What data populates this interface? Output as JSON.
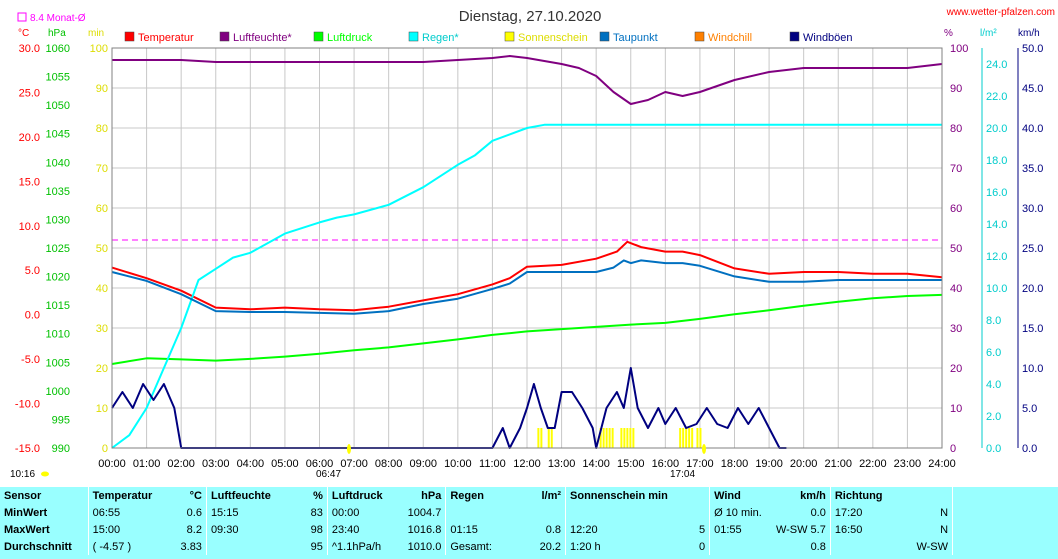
{
  "title": "Dienstag, 27.10.2020",
  "site": "www.wetter-pfalzen.com",
  "monthly_avg_label": "8.4 Monat-Ø",
  "unit_labels": {
    "celsius": "°C",
    "hpa": "hPa",
    "min": "min",
    "percent": "%",
    "lm2": "l/m²",
    "kmh": "km/h"
  },
  "legend": [
    {
      "name": "Temperatur",
      "color": "#ff0000"
    },
    {
      "name": "Luftfeuchte*",
      "color": "#800080"
    },
    {
      "name": "Luftdruck",
      "color": "#00ff00"
    },
    {
      "name": "Regen*",
      "color": "#00ffff"
    },
    {
      "name": "Sonnenschein",
      "color": "#ffff00"
    },
    {
      "name": "Taupunkt",
      "color": "#0070c0"
    },
    {
      "name": "Windchill",
      "color": "#ff8000"
    },
    {
      "name": "Windböen",
      "color": "#000080"
    }
  ],
  "markers": {
    "sunrise": "06:47",
    "sunset": "17:04",
    "daylength": "10:16"
  },
  "chart_data": {
    "type": "line",
    "title": "Dienstag, 27.10.2020",
    "x_ticks": [
      "00:00",
      "01:00",
      "02:00",
      "03:00",
      "04:00",
      "05:00",
      "06:00",
      "07:00",
      "08:00",
      "09:00",
      "10:00",
      "11:00",
      "12:00",
      "13:00",
      "14:00",
      "15:00",
      "16:00",
      "17:00",
      "18:00",
      "19:00",
      "20:00",
      "21:00",
      "22:00",
      "23:00",
      "24:00"
    ],
    "xlim": [
      0,
      24
    ],
    "axes": {
      "temperature_C": {
        "ticks": [
          "30.0",
          "25.0",
          "20.0",
          "15.0",
          "10.0",
          "5.0",
          "0.0",
          "-5.0",
          "-10.0",
          "-15.0"
        ],
        "range": [
          -15,
          30
        ],
        "color": "#ff0000"
      },
      "pressure_hPa": {
        "ticks": [
          "1060",
          "1055",
          "1050",
          "1045",
          "1040",
          "1035",
          "1030",
          "1025",
          "1020",
          "1015",
          "1010",
          "1005",
          "1000",
          "995",
          "990"
        ],
        "range": [
          990,
          1060
        ],
        "color": "#00c000"
      },
      "sunshine_min": {
        "ticks": [
          "100",
          "90",
          "80",
          "70",
          "60",
          "50",
          "40",
          "30",
          "20",
          "10",
          "0"
        ],
        "range": [
          0,
          100
        ],
        "color": "#dddd00"
      },
      "humidity_pct": {
        "ticks": [
          "100",
          "90",
          "80",
          "70",
          "60",
          "50",
          "40",
          "30",
          "20",
          "10",
          "0"
        ],
        "range": [
          0,
          100
        ],
        "color": "#800080"
      },
      "rain_lm2": {
        "ticks": [
          "24.0",
          "22.0",
          "20.0",
          "18.0",
          "16.0",
          "14.0",
          "12.0",
          "10.0",
          "8.0",
          "6.0",
          "4.0",
          "2.0",
          "0.0"
        ],
        "range": [
          0,
          25
        ],
        "color": "#00cccc"
      },
      "wind_kmh": {
        "ticks": [
          "50.0",
          "45.0",
          "40.0",
          "35.0",
          "30.0",
          "25.0",
          "20.0",
          "15.0",
          "10.0",
          "5.0",
          "0.0"
        ],
        "range": [
          0,
          50
        ],
        "color": "#000080"
      }
    },
    "monthly_avg_C": 8.4,
    "series": [
      {
        "name": "Temperatur",
        "axis": "temperature_C",
        "color": "#ff0000",
        "x": [
          0,
          1,
          2,
          3,
          4,
          5,
          6,
          7,
          8,
          9,
          10,
          11,
          11.5,
          12,
          13,
          14,
          14.6,
          14.9,
          15.3,
          16,
          16.5,
          17,
          18,
          19,
          20,
          21,
          22,
          23,
          24
        ],
        "y": [
          5.3,
          4.1,
          2.7,
          0.8,
          0.6,
          0.8,
          0.6,
          0.5,
          0.9,
          1.6,
          2.3,
          3.4,
          4.1,
          5.4,
          5.6,
          6.3,
          7.1,
          8.2,
          7.6,
          7.1,
          7.1,
          6.7,
          5.2,
          4.6,
          4.8,
          4.8,
          4.6,
          4.6,
          4.2
        ]
      },
      {
        "name": "Luftfeuchte*",
        "axis": "humidity_pct",
        "color": "#800080",
        "x": [
          0,
          1,
          2,
          3,
          4,
          5,
          6,
          7,
          8,
          9,
          10,
          11,
          11.5,
          12,
          13,
          13.5,
          14,
          14.5,
          15,
          15.5,
          16,
          16.5,
          17,
          18,
          19,
          20,
          21,
          22,
          23,
          24
        ],
        "y": [
          97,
          97,
          97,
          96.5,
          96.5,
          96.5,
          96.5,
          96.5,
          96.5,
          96.5,
          97,
          97.5,
          98,
          97.5,
          96,
          95,
          93,
          89,
          86,
          87,
          89,
          88,
          89,
          92,
          94,
          95,
          95,
          95,
          95,
          96
        ]
      },
      {
        "name": "Luftdruck",
        "axis": "pressure_hPa",
        "color": "#00ff00",
        "x": [
          0,
          1,
          2,
          3,
          4,
          5,
          6,
          7,
          8,
          9,
          10,
          11,
          12,
          13,
          14,
          15,
          16,
          17,
          18,
          19,
          20,
          21,
          22,
          23,
          24
        ],
        "y": [
          1004.7,
          1005.7,
          1005.5,
          1005.3,
          1005.6,
          1006.0,
          1006.5,
          1007.1,
          1007.6,
          1008.3,
          1009.0,
          1009.8,
          1010.4,
          1010.8,
          1011.2,
          1011.6,
          1011.9,
          1012.6,
          1013.4,
          1014.1,
          1014.9,
          1015.6,
          1016.2,
          1016.6,
          1016.8
        ]
      },
      {
        "name": "Regen*",
        "axis": "rain_lm2",
        "color": "#00ffff",
        "x": [
          0,
          0.5,
          1,
          1.5,
          2,
          2.5,
          3,
          3.5,
          4,
          5,
          6,
          6.5,
          7,
          8,
          9,
          10,
          10.5,
          11,
          12,
          12.5,
          13,
          14,
          15,
          16,
          17,
          18,
          19,
          20,
          21,
          22,
          23,
          24
        ],
        "y": [
          0,
          0.8,
          2.5,
          5.0,
          7.5,
          10.5,
          11.2,
          11.9,
          12.2,
          13.4,
          14.1,
          14.4,
          14.6,
          15.2,
          16.3,
          17.7,
          18.3,
          19.2,
          20.0,
          20.2,
          20.2,
          20.2,
          20.2,
          20.2,
          20.2,
          20.2,
          20.2,
          20.2,
          20.2,
          20.2,
          20.2,
          20.2
        ]
      },
      {
        "name": "Taupunkt",
        "axis": "temperature_C",
        "color": "#0070c0",
        "x": [
          0,
          1,
          2,
          3,
          4,
          5,
          6,
          7,
          8,
          9,
          10,
          11,
          11.5,
          12,
          13,
          14,
          14.5,
          14.8,
          15,
          15.3,
          16,
          16.5,
          17,
          18,
          19,
          20,
          21,
          22,
          23,
          24
        ],
        "y": [
          4.8,
          3.8,
          2.3,
          0.4,
          0.3,
          0.3,
          0.2,
          0.1,
          0.4,
          1.2,
          1.8,
          2.9,
          3.5,
          4.8,
          4.8,
          4.8,
          5.3,
          6.1,
          5.8,
          6.1,
          5.8,
          5.8,
          5.5,
          4.3,
          3.7,
          3.7,
          3.9,
          3.9,
          3.9,
          3.9
        ]
      },
      {
        "name": "Windböen",
        "axis": "wind_kmh",
        "color": "#000080",
        "x": [
          0,
          0.3,
          0.6,
          0.9,
          1.2,
          1.5,
          1.8,
          2.0,
          2.1,
          2.1,
          10.7,
          11.0,
          11.3,
          11.5,
          11.8,
          12.0,
          12.2,
          12.4,
          12.6,
          12.8,
          13.0,
          13.3,
          13.6,
          13.9,
          14.0,
          14.3,
          14.6,
          14.8,
          15.0,
          15.2,
          15.5,
          15.8,
          16.0,
          16.3,
          16.6,
          16.9,
          17.2,
          17.5,
          17.8,
          18.1,
          18.4,
          18.7,
          19.0,
          19.3,
          19.5
        ],
        "y": [
          5,
          7,
          5,
          8,
          6,
          8,
          5,
          0,
          0,
          0,
          0,
          0,
          2.5,
          0,
          2.5,
          5,
          8,
          5,
          2.5,
          2.5,
          7,
          7,
          5,
          2.5,
          0,
          5,
          7,
          5,
          10,
          5,
          2.5,
          5,
          3,
          5,
          2.5,
          3,
          5,
          3,
          2.5,
          5,
          3,
          5,
          2.5,
          0,
          0
        ]
      }
    ],
    "sunshine_bars": [
      {
        "from": 12.3,
        "to": 12.45
      },
      {
        "from": 12.6,
        "to": 12.7
      },
      {
        "from": 14.1,
        "to": 14.45
      },
      {
        "from": 14.7,
        "to": 15.05
      },
      {
        "from": 16.4,
        "to": 16.8
      },
      {
        "from": 16.9,
        "to": 17.0
      }
    ]
  },
  "table": {
    "headers": {
      "sensor": "Sensor",
      "temp": "Temperatur",
      "temp_unit": "°C",
      "hum": "Luftfeuchte",
      "hum_unit": "%",
      "press": "Luftdruck",
      "press_unit": "hPa",
      "rain": "Regen",
      "rain_unit": "l/m²",
      "sun": "Sonnenschein min",
      "wind": "Wind",
      "wind_unit": "km/h",
      "dir": "Richtung"
    },
    "rows": [
      {
        "label": "MinWert",
        "t_time": "06:55",
        "t_val": "0.6",
        "h_time": "15:15",
        "h_val": "83",
        "p_time": "00:00",
        "p_val": "1004.7",
        "r_time": "",
        "r_val": "",
        "s_time": "",
        "s_val": "",
        "w_time": "Ø 10 min.",
        "w_val": "0.0",
        "d_time": "17:20",
        "d_val": "N"
      },
      {
        "label": "MaxWert",
        "t_time": "15:00",
        "t_val": "8.2",
        "h_time": "09:30",
        "h_val": "98",
        "p_time": "23:40",
        "p_val": "1016.8",
        "r_time": "01:15",
        "r_val": "0.8",
        "s_time": "12:20",
        "s_val": "5",
        "w_time": "01:55",
        "w_val": "W-SW 5.7",
        "d_time": "16:50",
        "d_val": "N"
      },
      {
        "label": "Durchschnitt",
        "t_time": "( -4.57 )",
        "t_val": "3.83",
        "h_time": "",
        "h_val": "95",
        "p_time": "^1.1hPa/h",
        "p_val": "1010.0",
        "r_time": "Gesamt:",
        "r_val": "20.2",
        "s_time": "1:20 h",
        "s_val": "0",
        "w_time": "",
        "w_val": "0.8",
        "d_time": "",
        "d_val": "W-SW"
      }
    ]
  }
}
